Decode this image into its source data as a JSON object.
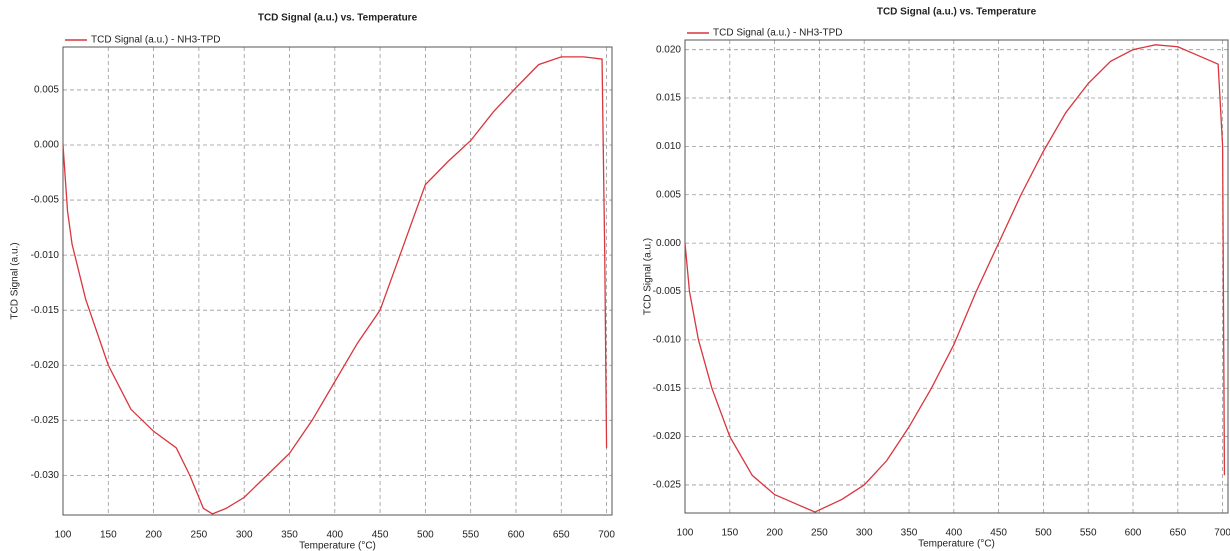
{
  "chart_data": [
    {
      "type": "line",
      "title": "TCD Signal (a.u.) vs. Temperature",
      "x_label": "Temperature (°C)",
      "y_label": "TCD Signal (a.u.)",
      "x": [
        100,
        105,
        110,
        125,
        150,
        175,
        200,
        225,
        240,
        255,
        265,
        280,
        300,
        325,
        350,
        375,
        400,
        425,
        450,
        475,
        500,
        525,
        550,
        575,
        600,
        625,
        650,
        675,
        695,
        698,
        700
      ],
      "series": [
        {
          "name": "TCD Signal (a.u.) - NH3-TPD",
          "color": "#d9363e",
          "values": [
            0.0,
            -0.006,
            -0.009,
            -0.014,
            -0.02,
            -0.024,
            -0.026,
            -0.0275,
            -0.03,
            -0.033,
            -0.0335,
            -0.033,
            -0.032,
            -0.03,
            -0.028,
            -0.025,
            -0.0215,
            -0.018,
            -0.015,
            -0.0093,
            -0.0036,
            -0.0015,
            0.0004,
            0.003,
            0.0052,
            0.0073,
            0.008,
            0.008,
            0.0078,
            -0.01,
            -0.0275
          ]
        }
      ],
      "xlim": [
        100,
        706
      ],
      "xticks": [
        100,
        150,
        200,
        250,
        300,
        350,
        400,
        450,
        500,
        550,
        600,
        650,
        700
      ],
      "ylim": [
        -0.0336,
        0.0089
      ],
      "yticks": [
        {
          "value": 0.005,
          "label": "0.005"
        },
        {
          "value": 0.0,
          "label": "0.000"
        },
        {
          "value": -0.005,
          "label": "-0.005"
        },
        {
          "value": -0.01,
          "label": "-0.010"
        },
        {
          "value": -0.015,
          "label": "-0.015"
        },
        {
          "value": -0.02,
          "label": "-0.020"
        },
        {
          "value": -0.025,
          "label": "-0.025"
        },
        {
          "value": -0.03,
          "label": "-0.030"
        }
      ],
      "grid": true
    },
    {
      "type": "line",
      "title": "TCD Signal (a.u.) vs. Temperature",
      "x_label": "Temperature (°C)",
      "y_label": "TCD Signal (a.u.)",
      "x": [
        100,
        105,
        115,
        130,
        150,
        175,
        200,
        225,
        245,
        275,
        300,
        325,
        350,
        375,
        400,
        425,
        450,
        475,
        500,
        525,
        550,
        575,
        600,
        625,
        650,
        675,
        695,
        700,
        702
      ],
      "series": [
        {
          "name": "TCD Signal (a.u.) - NH3-TPD",
          "color": "#d9363e",
          "values": [
            0.0,
            -0.005,
            -0.01,
            -0.015,
            -0.02,
            -0.024,
            -0.026,
            -0.027,
            -0.0278,
            -0.0265,
            -0.025,
            -0.0225,
            -0.019,
            -0.015,
            -0.0105,
            -0.005,
            0.0,
            0.005,
            0.0095,
            0.0135,
            0.0165,
            0.0188,
            0.02,
            0.0205,
            0.0203,
            0.0193,
            0.0185,
            0.01,
            -0.024
          ]
        }
      ],
      "xlim": [
        100,
        706
      ],
      "xticks": [
        100,
        150,
        200,
        250,
        300,
        350,
        400,
        450,
        500,
        550,
        600,
        650,
        700
      ],
      "ylim": [
        -0.0279,
        0.021
      ],
      "yticks": [
        {
          "value": 0.02,
          "label": "0.020"
        },
        {
          "value": 0.015,
          "label": "0.015"
        },
        {
          "value": 0.01,
          "label": "0.010"
        },
        {
          "value": 0.005,
          "label": "0.005"
        },
        {
          "value": 0.0,
          "label": "0.000"
        },
        {
          "value": -0.005,
          "label": "-0.005"
        },
        {
          "value": -0.01,
          "label": "-0.010"
        },
        {
          "value": -0.015,
          "label": "-0.015"
        },
        {
          "value": -0.02,
          "label": "-0.020"
        },
        {
          "value": -0.025,
          "label": "-0.025"
        }
      ],
      "grid": true
    }
  ]
}
